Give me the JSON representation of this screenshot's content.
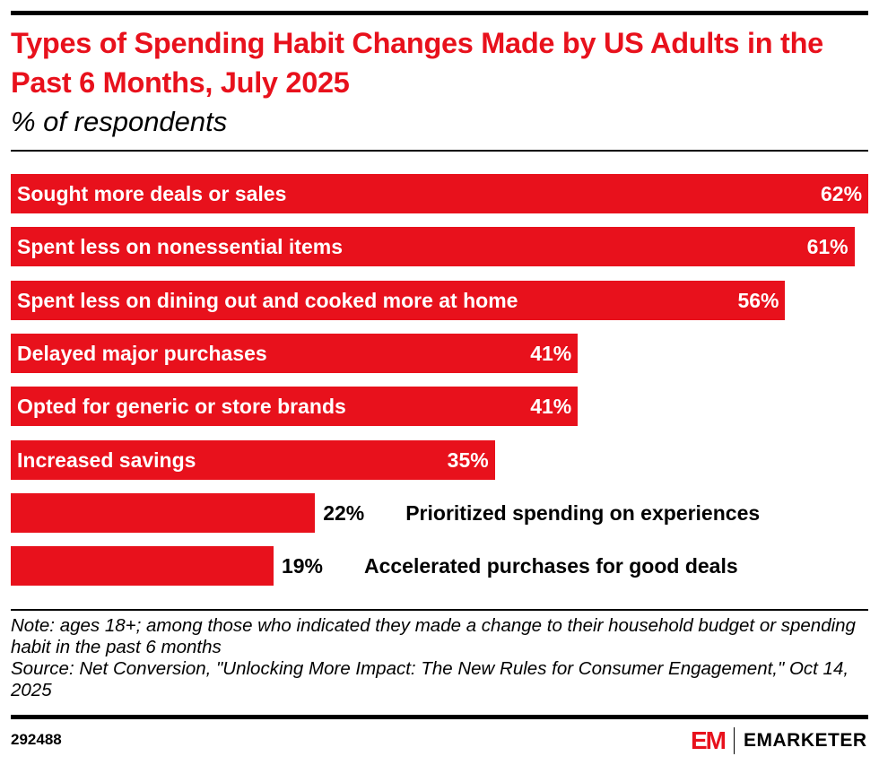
{
  "title": "Types of Spending Habit Changes Made by US Adults in the Past 6 Months, July 2025",
  "subtitle": "% of respondents",
  "note": "Note: ages 18+; among those who indicated they made a change to their household budget or spending habit in the past 6 months",
  "source": "Source: Net Conversion, \"Unlocking More Impact: The New Rules for Consumer Engagement,\" Oct 14, 2025",
  "chart_id": "292488",
  "logo": {
    "mark": "EM",
    "text": "EMARKETER"
  },
  "colors": {
    "bar": "#e8111c",
    "title": "#e8111c"
  },
  "chart_data": {
    "type": "bar",
    "orientation": "horizontal",
    "title": "Types of Spending Habit Changes Made by US Adults in the Past 6 Months, July 2025",
    "subtitle": "% of respondents",
    "categories": [
      "Sought more deals or sales",
      "Spent less on nonessential items",
      "Spent less on dining out and cooked more at home",
      "Delayed major purchases",
      "Opted for generic or store brands",
      "Increased savings",
      "Prioritized spending on experiences",
      "Accelerated purchases for good deals"
    ],
    "values": [
      62,
      61,
      56,
      41,
      41,
      35,
      22,
      19
    ],
    "value_labels": [
      "62%",
      "61%",
      "56%",
      "41%",
      "41%",
      "35%",
      "22%",
      "19%"
    ],
    "xlim": [
      0,
      62
    ],
    "grid": false
  }
}
